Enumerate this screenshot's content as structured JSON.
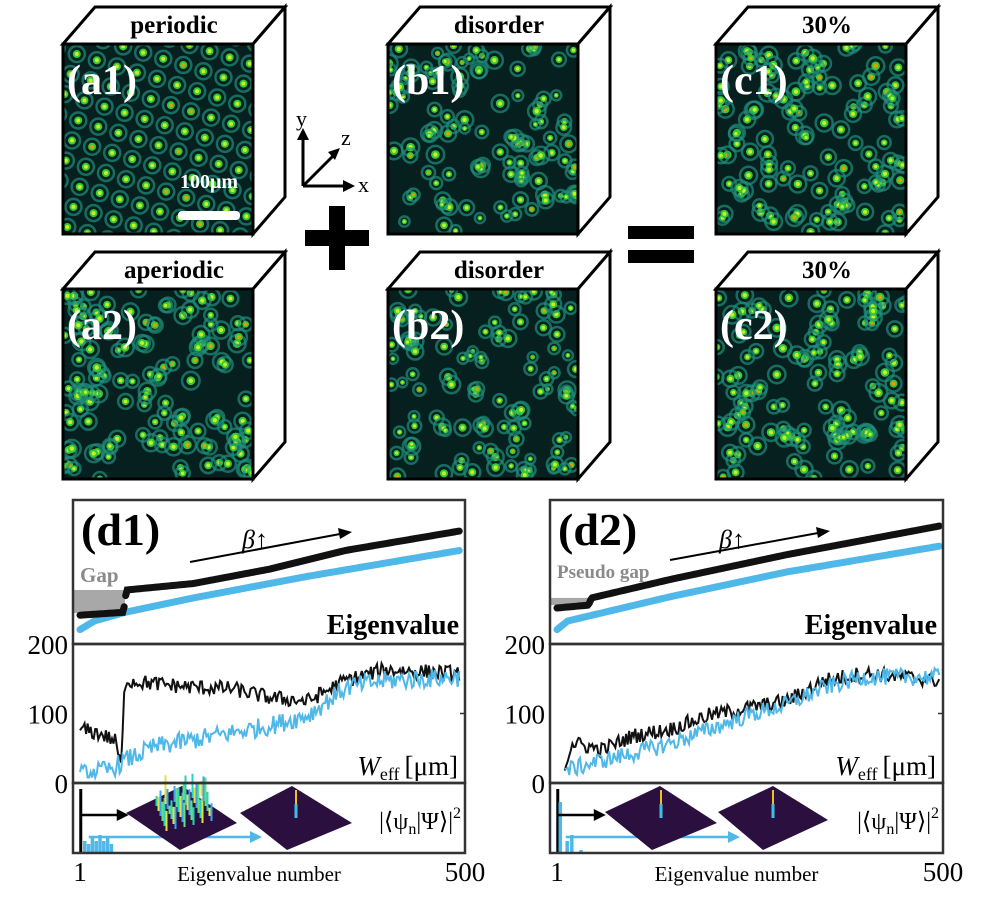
{
  "panels": {
    "a1": {
      "label": "(a1)",
      "header": "periodic",
      "scale_bar": "100μm",
      "pattern": "periodic"
    },
    "a2": {
      "label": "(a2)",
      "header": "aperiodic",
      "pattern": "aperiodic"
    },
    "b1": {
      "label": "(b1)",
      "header": "disorder",
      "pattern": "disorder"
    },
    "b2": {
      "label": "(b2)",
      "header": "disorder",
      "pattern": "disorder"
    },
    "c1": {
      "label": "(c1)",
      "header": "30%",
      "pattern": "mixed"
    },
    "c2": {
      "label": "(c2)",
      "header": "30%",
      "pattern": "mixed"
    }
  },
  "axes_glyph": {
    "x": "x",
    "y": "y",
    "z": "z"
  },
  "operators": {
    "plus": "+",
    "equals": "="
  },
  "colors": {
    "black_series": "#111111",
    "blue_series": "#4fb8e8",
    "gap": "#a8a8a8",
    "gap_text": "#8a8a8a",
    "surface": "#2a0f3f",
    "field_bg": "#06201f"
  },
  "chart_data": [
    {
      "id": "d1",
      "type": "line",
      "panel_label": "(d1)",
      "gap_label": "Gap",
      "beta_label": "β↑",
      "eigen_title": "Eigenvalue",
      "weff_title": "W",
      "weff_sub": "eff",
      "weff_unit": "[μm]",
      "overlap_title": "|⟨ψ",
      "overlap_sub": "n",
      "overlap_end": "|Ψ⟩|",
      "overlap_sup": "2",
      "xlabel": "Eigenvalue number",
      "xticks": [
        "1",
        "500"
      ],
      "xlim": [
        1,
        500
      ],
      "yticks": [
        "200",
        "100",
        "0"
      ],
      "ylim": [
        0,
        200
      ],
      "gap_range": [
        0.215,
        0.375
      ],
      "gap_end_n": 60,
      "eigenvalues": {
        "black": [
          [
            1,
            0.2
          ],
          [
            58,
            0.22
          ],
          [
            62,
            0.375
          ],
          [
            150,
            0.42
          ],
          [
            250,
            0.52
          ],
          [
            350,
            0.65
          ],
          [
            500,
            0.785
          ]
        ],
        "blue": [
          [
            1,
            0.1
          ],
          [
            20,
            0.16
          ],
          [
            60,
            0.22
          ],
          [
            150,
            0.32
          ],
          [
            300,
            0.47
          ],
          [
            500,
            0.65
          ]
        ]
      },
      "weff": {
        "black": {
          "points": [
            [
              1,
              80
            ],
            [
              30,
              72
            ],
            [
              48,
              62
            ],
            [
              55,
              25
            ],
            [
              60,
              150
            ],
            [
              100,
              145
            ],
            [
              150,
              140
            ],
            [
              200,
              138
            ],
            [
              250,
              125
            ],
            [
              300,
              120
            ],
            [
              350,
              150
            ],
            [
              400,
              165
            ],
            [
              500,
              160
            ]
          ],
          "noise": 22
        },
        "blue": {
          "points": [
            [
              1,
              15
            ],
            [
              40,
              22
            ],
            [
              60,
              35
            ],
            [
              100,
              55
            ],
            [
              150,
              65
            ],
            [
              200,
              75
            ],
            [
              250,
              85
            ],
            [
              300,
              100
            ],
            [
              350,
              140
            ],
            [
              400,
              150
            ],
            [
              500,
              155
            ]
          ],
          "noise": 28
        }
      },
      "overlap": {
        "black_bar_n": 2,
        "blue_bars": [
          [
            5,
            0.2
          ],
          [
            10,
            0.15
          ],
          [
            15,
            0.25
          ],
          [
            20,
            0.2
          ],
          [
            25,
            0.3
          ],
          [
            30,
            0.2
          ],
          [
            35,
            0.25
          ],
          [
            40,
            0.15
          ]
        ]
      }
    },
    {
      "id": "d2",
      "type": "line",
      "panel_label": "(d2)",
      "gap_label": "Pseudo gap",
      "beta_label": "β↑",
      "eigen_title": "Eigenvalue",
      "weff_title": "W",
      "weff_sub": "eff",
      "weff_unit": "[μm]",
      "overlap_title": "|⟨ψ",
      "overlap_sub": "n",
      "overlap_end": "|Ψ⟩|",
      "overlap_sup": "2",
      "xlabel": "Eigenvalue number",
      "xticks": [
        "1",
        "500"
      ],
      "xlim": [
        1,
        500
      ],
      "yticks": [
        "200",
        "100",
        "0"
      ],
      "ylim": [
        0,
        200
      ],
      "gap_range": [
        0.27,
        0.32
      ],
      "gap_end_n": 45,
      "eigenvalues": {
        "black": [
          [
            1,
            0.25
          ],
          [
            42,
            0.27
          ],
          [
            46,
            0.32
          ],
          [
            150,
            0.45
          ],
          [
            300,
            0.62
          ],
          [
            500,
            0.82
          ]
        ],
        "blue": [
          [
            1,
            0.1
          ],
          [
            15,
            0.16
          ],
          [
            150,
            0.33
          ],
          [
            300,
            0.5
          ],
          [
            500,
            0.68
          ]
        ]
      },
      "weff": {
        "black": {
          "points": [
            [
              10,
              20
            ],
            [
              20,
              60
            ],
            [
              60,
              50
            ],
            [
              100,
              70
            ],
            [
              150,
              80
            ],
            [
              200,
              100
            ],
            [
              250,
              110
            ],
            [
              300,
              120
            ],
            [
              350,
              150
            ],
            [
              400,
              160
            ],
            [
              500,
              150
            ]
          ],
          "noise": 22
        },
        "blue": {
          "points": [
            [
              10,
              20
            ],
            [
              60,
              35
            ],
            [
              100,
              45
            ],
            [
              150,
              60
            ],
            [
              200,
              80
            ],
            [
              250,
              100
            ],
            [
              300,
              115
            ],
            [
              350,
              140
            ],
            [
              400,
              155
            ],
            [
              500,
              155
            ]
          ],
          "noise": 25
        }
      },
      "overlap": {
        "black_bar_n": 2,
        "blue_bars": [
          [
            3,
            0.85
          ],
          [
            12,
            0.2
          ],
          [
            18,
            0.3
          ],
          [
            30,
            0.05
          ]
        ]
      }
    }
  ]
}
